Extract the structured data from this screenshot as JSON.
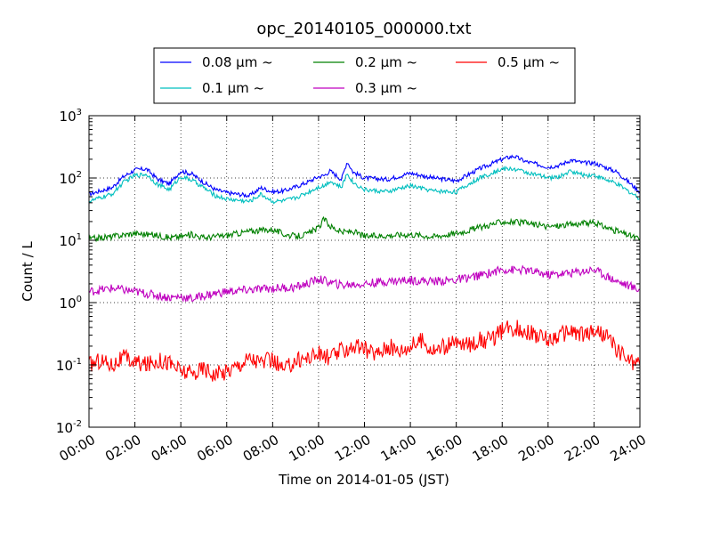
{
  "chart_data": {
    "type": "line",
    "title": "opc_20140105_000000.txt",
    "xlabel": "Time on 2014-01-05 (JST)",
    "ylabel": "Count / L",
    "xlim_hours": [
      0,
      24
    ],
    "x_ticks": [
      "00:00",
      "02:00",
      "04:00",
      "06:00",
      "08:00",
      "10:00",
      "12:00",
      "14:00",
      "16:00",
      "18:00",
      "20:00",
      "22:00",
      "24:00"
    ],
    "y_scale": "log",
    "ylim": [
      0.01,
      1000
    ],
    "y_ticks": [
      {
        "base": "10",
        "exp": "-2",
        "value": 0.01
      },
      {
        "base": "10",
        "exp": "-1",
        "value": 0.1
      },
      {
        "base": "10",
        "exp": "0",
        "value": 1
      },
      {
        "base": "10",
        "exp": "1",
        "value": 10
      },
      {
        "base": "10",
        "exp": "2",
        "value": 100
      },
      {
        "base": "10",
        "exp": "3",
        "value": 1000
      }
    ],
    "grid": true,
    "legend_position": "top-center",
    "series": [
      {
        "name": "0.08 μm ~",
        "color": "#0000ff",
        "x": [
          0,
          1,
          1.5,
          2,
          2.5,
          3,
          3.5,
          4,
          4.5,
          5,
          5.5,
          6,
          6.5,
          7,
          7.5,
          8,
          8.5,
          9,
          9.5,
          10,
          10.25,
          10.5,
          11,
          11.25,
          11.5,
          12,
          13,
          14,
          15,
          16,
          17,
          18,
          18.5,
          19,
          20,
          20.5,
          21,
          21.5,
          22,
          23,
          24
        ],
        "y": [
          55,
          70,
          105,
          135,
          140,
          95,
          80,
          130,
          115,
          85,
          65,
          58,
          55,
          52,
          70,
          60,
          62,
          72,
          85,
          105,
          110,
          130,
          95,
          185,
          125,
          100,
          95,
          120,
          100,
          90,
          140,
          200,
          225,
          185,
          150,
          160,
          195,
          175,
          175,
          125,
          60
        ]
      },
      {
        "name": "0.1 μm ~",
        "color": "#00bfbf",
        "x": [
          0,
          1,
          1.5,
          2,
          2.5,
          3,
          3.5,
          4,
          4.5,
          5,
          5.5,
          6,
          6.5,
          7,
          7.5,
          8,
          8.5,
          9,
          9.5,
          10,
          10.25,
          10.5,
          11,
          11.25,
          11.5,
          12,
          13,
          14,
          15,
          16,
          17,
          18,
          18.5,
          19,
          20,
          20.5,
          21,
          21.5,
          22,
          23,
          24
        ],
        "y": [
          42,
          55,
          85,
          110,
          115,
          78,
          65,
          105,
          92,
          70,
          52,
          46,
          44,
          42,
          55,
          42,
          43,
          48,
          58,
          72,
          75,
          90,
          70,
          120,
          85,
          65,
          60,
          75,
          62,
          60,
          100,
          140,
          140,
          125,
          100,
          105,
          130,
          112,
          112,
          80,
          47
        ]
      },
      {
        "name": "0.2 μm ~",
        "color": "#008000",
        "x": [
          0,
          1,
          2,
          3,
          3.5,
          4,
          4.5,
          5,
          5.5,
          6,
          7,
          8,
          8.5,
          9,
          9.5,
          10,
          10.25,
          10.5,
          11,
          11.5,
          12,
          13,
          14,
          15,
          16,
          17,
          18,
          19,
          20,
          21,
          22,
          23,
          24
        ],
        "y": [
          10.5,
          11.5,
          13,
          12,
          11,
          11.5,
          12.5,
          11,
          11.5,
          12,
          14,
          15,
          12.5,
          11.5,
          12.5,
          16,
          22,
          17,
          13.5,
          14,
          11.5,
          12,
          12.5,
          11.5,
          13,
          16,
          20,
          19,
          16.5,
          18,
          19,
          14,
          10.5
        ]
      },
      {
        "name": "0.3 μm ~",
        "color": "#bf00bf",
        "x": [
          0,
          1,
          2,
          3,
          3.5,
          4,
          4.5,
          5,
          6,
          7,
          8,
          9,
          9.5,
          10,
          10.5,
          11,
          12,
          13,
          14,
          15,
          16,
          17,
          18,
          19,
          20,
          21,
          22,
          23,
          24
        ],
        "y": [
          1.5,
          1.7,
          1.5,
          1.3,
          1.2,
          1.25,
          1.15,
          1.3,
          1.5,
          1.6,
          1.7,
          1.75,
          2.0,
          2.4,
          2.1,
          1.9,
          2.0,
          2.2,
          2.3,
          2.2,
          2.3,
          2.7,
          3.4,
          3.3,
          2.8,
          3.0,
          3.4,
          2.2,
          1.6
        ]
      },
      {
        "name": "0.5 μm ~",
        "color": "#ff0000",
        "x": [
          0,
          0.5,
          1,
          1.5,
          2,
          2.5,
          3,
          3.5,
          4,
          4.5,
          5,
          5.5,
          6,
          6.5,
          7,
          7.5,
          8,
          8.5,
          9,
          9.5,
          10,
          10.5,
          11,
          11.5,
          12,
          12.5,
          13,
          13.5,
          14,
          14.5,
          15,
          15.5,
          16,
          16.5,
          17,
          17.5,
          18,
          18.5,
          19,
          19.5,
          20,
          20.5,
          21,
          21.5,
          22,
          22.5,
          23,
          23.5,
          24
        ],
        "y": [
          0.1,
          0.12,
          0.1,
          0.13,
          0.11,
          0.1,
          0.12,
          0.11,
          0.08,
          0.07,
          0.09,
          0.07,
          0.08,
          0.1,
          0.13,
          0.11,
          0.12,
          0.08,
          0.12,
          0.13,
          0.15,
          0.13,
          0.17,
          0.2,
          0.18,
          0.15,
          0.2,
          0.17,
          0.2,
          0.25,
          0.17,
          0.2,
          0.22,
          0.21,
          0.25,
          0.25,
          0.35,
          0.4,
          0.35,
          0.3,
          0.25,
          0.3,
          0.35,
          0.3,
          0.35,
          0.3,
          0.18,
          0.12,
          0.1
        ]
      }
    ]
  }
}
